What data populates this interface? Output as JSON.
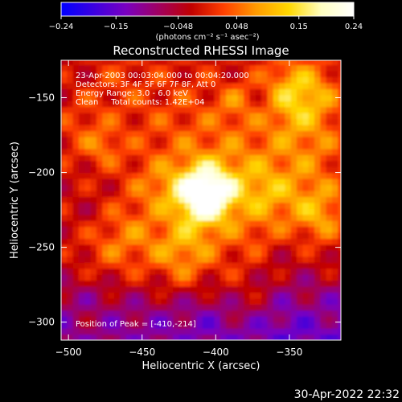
{
  "colors": {
    "background": "#000000",
    "foreground": "#ffffff",
    "colormap": [
      "#0000ff",
      "#3b00e0",
      "#7a00c0",
      "#a00060",
      "#c00000",
      "#ff4000",
      "#ff9a00",
      "#ffd800",
      "#ffffc0",
      "#ffffff"
    ]
  },
  "chart_data": {
    "type": "heatmap",
    "title": "Reconstructed RHESSI Image",
    "xlabel": "Heliocentric X (arcsec)",
    "ylabel": "Heliocentric Y (arcsec)",
    "xlim": [
      -505,
      -315
    ],
    "ylim": [
      -312,
      -125
    ],
    "x_ticks": [
      -500,
      -450,
      -400,
      -350
    ],
    "x_tick_labels": [
      "−500",
      "−450",
      "−400",
      "−350"
    ],
    "y_ticks": [
      -150,
      -200,
      -250,
      -300
    ],
    "y_tick_labels": [
      "−150",
      "−200",
      "−250",
      "−300"
    ],
    "colorbar": {
      "range": [
        -0.24,
        0.24
      ],
      "ticks": [
        -0.24,
        -0.15,
        -0.048,
        0.048,
        0.15,
        0.24
      ],
      "tick_labels": [
        "−0.24",
        "−0.15",
        "−0.048",
        "0.048",
        "0.15",
        "0.24"
      ],
      "unit_label": "(photons cm⁻² s⁻¹ asec⁻²)"
    },
    "annotations": [
      "23-Apr-2003 00:03:04.000 to 00:04:20.000",
      "Detectors: 3F 4F 5F 6F 7F 8F, Att 0",
      "Energy Range: 3.0 - 6.0 keV",
      "Clean     Total counts: 1.42E+04"
    ],
    "peak_label": "Position of Peak = [-410,-214]",
    "peak": [
      -410,
      -214
    ],
    "peak_value": 0.24
  },
  "footer": {
    "timestamp": "30-Apr-2022 22:32"
  }
}
